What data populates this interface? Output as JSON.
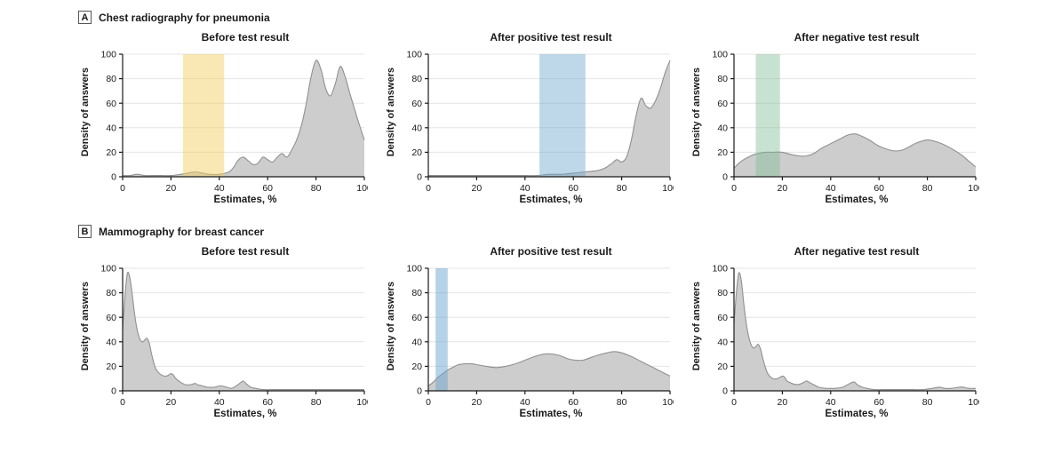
{
  "sections": [
    {
      "label": "A",
      "title": "Chest radiography for pneumonia"
    },
    {
      "label": "B",
      "title": "Mammography for breast cancer"
    }
  ],
  "axis": {
    "y_label": "Density of answers",
    "x_label": "Estimates, %",
    "ticks": [
      0,
      20,
      40,
      60,
      80,
      100
    ],
    "xlim": [
      0,
      100
    ],
    "ylim": [
      0,
      100
    ],
    "grid": "horizontal"
  },
  "colors": {
    "curve_fill": "#cdcdcd",
    "curve_stroke": "#909090",
    "gridline": "#e4e4e4",
    "axis": "#1a1a1a",
    "band_yellow": "rgba(243,208,106,0.5)",
    "band_blue": "rgba(110,166,206,0.45)",
    "band_green": "rgba(130,190,150,0.45)"
  },
  "chart_data": [
    {
      "type": "area",
      "panel": "A",
      "title": "Before test result",
      "band": {
        "from": 25,
        "to": 42,
        "color": "rgba(243,208,106,0.5)"
      },
      "x": [
        0,
        3,
        6,
        9,
        12,
        16,
        20,
        24,
        27,
        30,
        33,
        36,
        40,
        44,
        46,
        48,
        50,
        52,
        54,
        56,
        58,
        60,
        62,
        64,
        66,
        68,
        70,
        72,
        74,
        76,
        78,
        80,
        82,
        84,
        86,
        88,
        90,
        92,
        94,
        96,
        98,
        100
      ],
      "density": [
        1,
        1,
        2,
        1,
        1,
        1,
        1,
        2,
        3,
        4,
        3,
        2,
        2,
        4,
        8,
        14,
        16,
        13,
        10,
        11,
        16,
        14,
        12,
        16,
        19,
        16,
        22,
        30,
        42,
        60,
        82,
        95,
        88,
        72,
        66,
        76,
        90,
        82,
        68,
        55,
        42,
        30
      ]
    },
    {
      "type": "area",
      "panel": "A",
      "title": "After positive test result",
      "band": {
        "from": 46,
        "to": 65,
        "color": "rgba(110,166,206,0.45)"
      },
      "x": [
        0,
        10,
        20,
        30,
        40,
        45,
        50,
        55,
        60,
        65,
        70,
        73,
        76,
        78,
        80,
        82,
        84,
        86,
        88,
        90,
        92,
        94,
        96,
        98,
        100
      ],
      "density": [
        1,
        1,
        1,
        1,
        1,
        1,
        2,
        2,
        3,
        4,
        5,
        7,
        11,
        14,
        12,
        16,
        30,
        50,
        64,
        58,
        56,
        62,
        72,
        85,
        95
      ]
    },
    {
      "type": "area",
      "panel": "A",
      "title": "After negative test result",
      "band": {
        "from": 9,
        "to": 19,
        "color": "rgba(130,190,150,0.45)"
      },
      "x": [
        0,
        2,
        4,
        6,
        8,
        10,
        13,
        16,
        20,
        24,
        27,
        30,
        33,
        36,
        40,
        44,
        47,
        50,
        53,
        56,
        60,
        64,
        67,
        70,
        73,
        76,
        80,
        83,
        86,
        90,
        94,
        97,
        100
      ],
      "density": [
        7,
        11,
        14,
        16,
        18,
        19,
        20,
        20,
        20,
        18,
        17,
        17,
        19,
        23,
        27,
        31,
        34,
        35,
        33,
        30,
        25,
        22,
        21,
        22,
        25,
        28,
        30,
        29,
        27,
        23,
        18,
        13,
        8
      ]
    },
    {
      "type": "area",
      "panel": "B",
      "title": "Before test result",
      "band": null,
      "x": [
        0,
        1,
        2,
        3,
        4,
        5,
        6,
        7,
        8,
        9,
        10,
        11,
        12,
        13,
        14,
        16,
        18,
        20,
        21,
        22,
        24,
        26,
        28,
        30,
        31,
        33,
        35,
        38,
        40,
        41,
        43,
        45,
        47,
        49,
        50,
        51,
        53,
        55,
        58,
        62,
        66,
        70,
        75,
        80,
        85,
        90,
        95,
        100
      ],
      "density": [
        50,
        78,
        96,
        92,
        78,
        62,
        50,
        43,
        40,
        41,
        43,
        39,
        30,
        22,
        17,
        13,
        12,
        14,
        13,
        10,
        7,
        5,
        5,
        6,
        5,
        4,
        3,
        3,
        4,
        4,
        3,
        2,
        4,
        7,
        8,
        6,
        3,
        2,
        1,
        1,
        1,
        1,
        1,
        1,
        1,
        1,
        1,
        1
      ]
    },
    {
      "type": "area",
      "panel": "B",
      "title": "After positive test result",
      "band": {
        "from": 3,
        "to": 8,
        "color": "rgba(110,166,206,0.5)"
      },
      "x": [
        0,
        2,
        4,
        6,
        8,
        10,
        12,
        15,
        18,
        21,
        24,
        28,
        32,
        36,
        40,
        44,
        48,
        51,
        54,
        58,
        61,
        64,
        67,
        70,
        74,
        77,
        80,
        84,
        88,
        92,
        96,
        100
      ],
      "density": [
        4,
        7,
        11,
        14,
        17,
        19,
        21,
        22,
        22,
        21,
        20,
        19,
        20,
        22,
        25,
        28,
        30,
        30,
        29,
        26,
        25,
        25,
        27,
        29,
        31,
        32,
        31,
        28,
        24,
        20,
        16,
        12
      ]
    },
    {
      "type": "area",
      "panel": "B",
      "title": "After negative test result",
      "band": null,
      "x": [
        0,
        1,
        2,
        3,
        4,
        5,
        6,
        7,
        8,
        9,
        10,
        11,
        12,
        13,
        14,
        16,
        18,
        20,
        21,
        22,
        24,
        26,
        28,
        30,
        31,
        33,
        35,
        38,
        40,
        42,
        45,
        47,
        49,
        50,
        51,
        53,
        55,
        58,
        62,
        66,
        70,
        74,
        78,
        82,
        85,
        87,
        90,
        93,
        95,
        97,
        100
      ],
      "density": [
        55,
        80,
        96,
        90,
        72,
        56,
        45,
        38,
        35,
        36,
        38,
        34,
        26,
        19,
        14,
        10,
        10,
        12,
        11,
        8,
        6,
        5,
        6,
        8,
        7,
        5,
        3,
        2,
        2,
        2,
        3,
        5,
        7,
        7,
        5,
        3,
        2,
        1,
        1,
        1,
        1,
        1,
        1,
        2,
        3,
        2,
        2,
        3,
        3,
        2,
        2
      ]
    }
  ]
}
